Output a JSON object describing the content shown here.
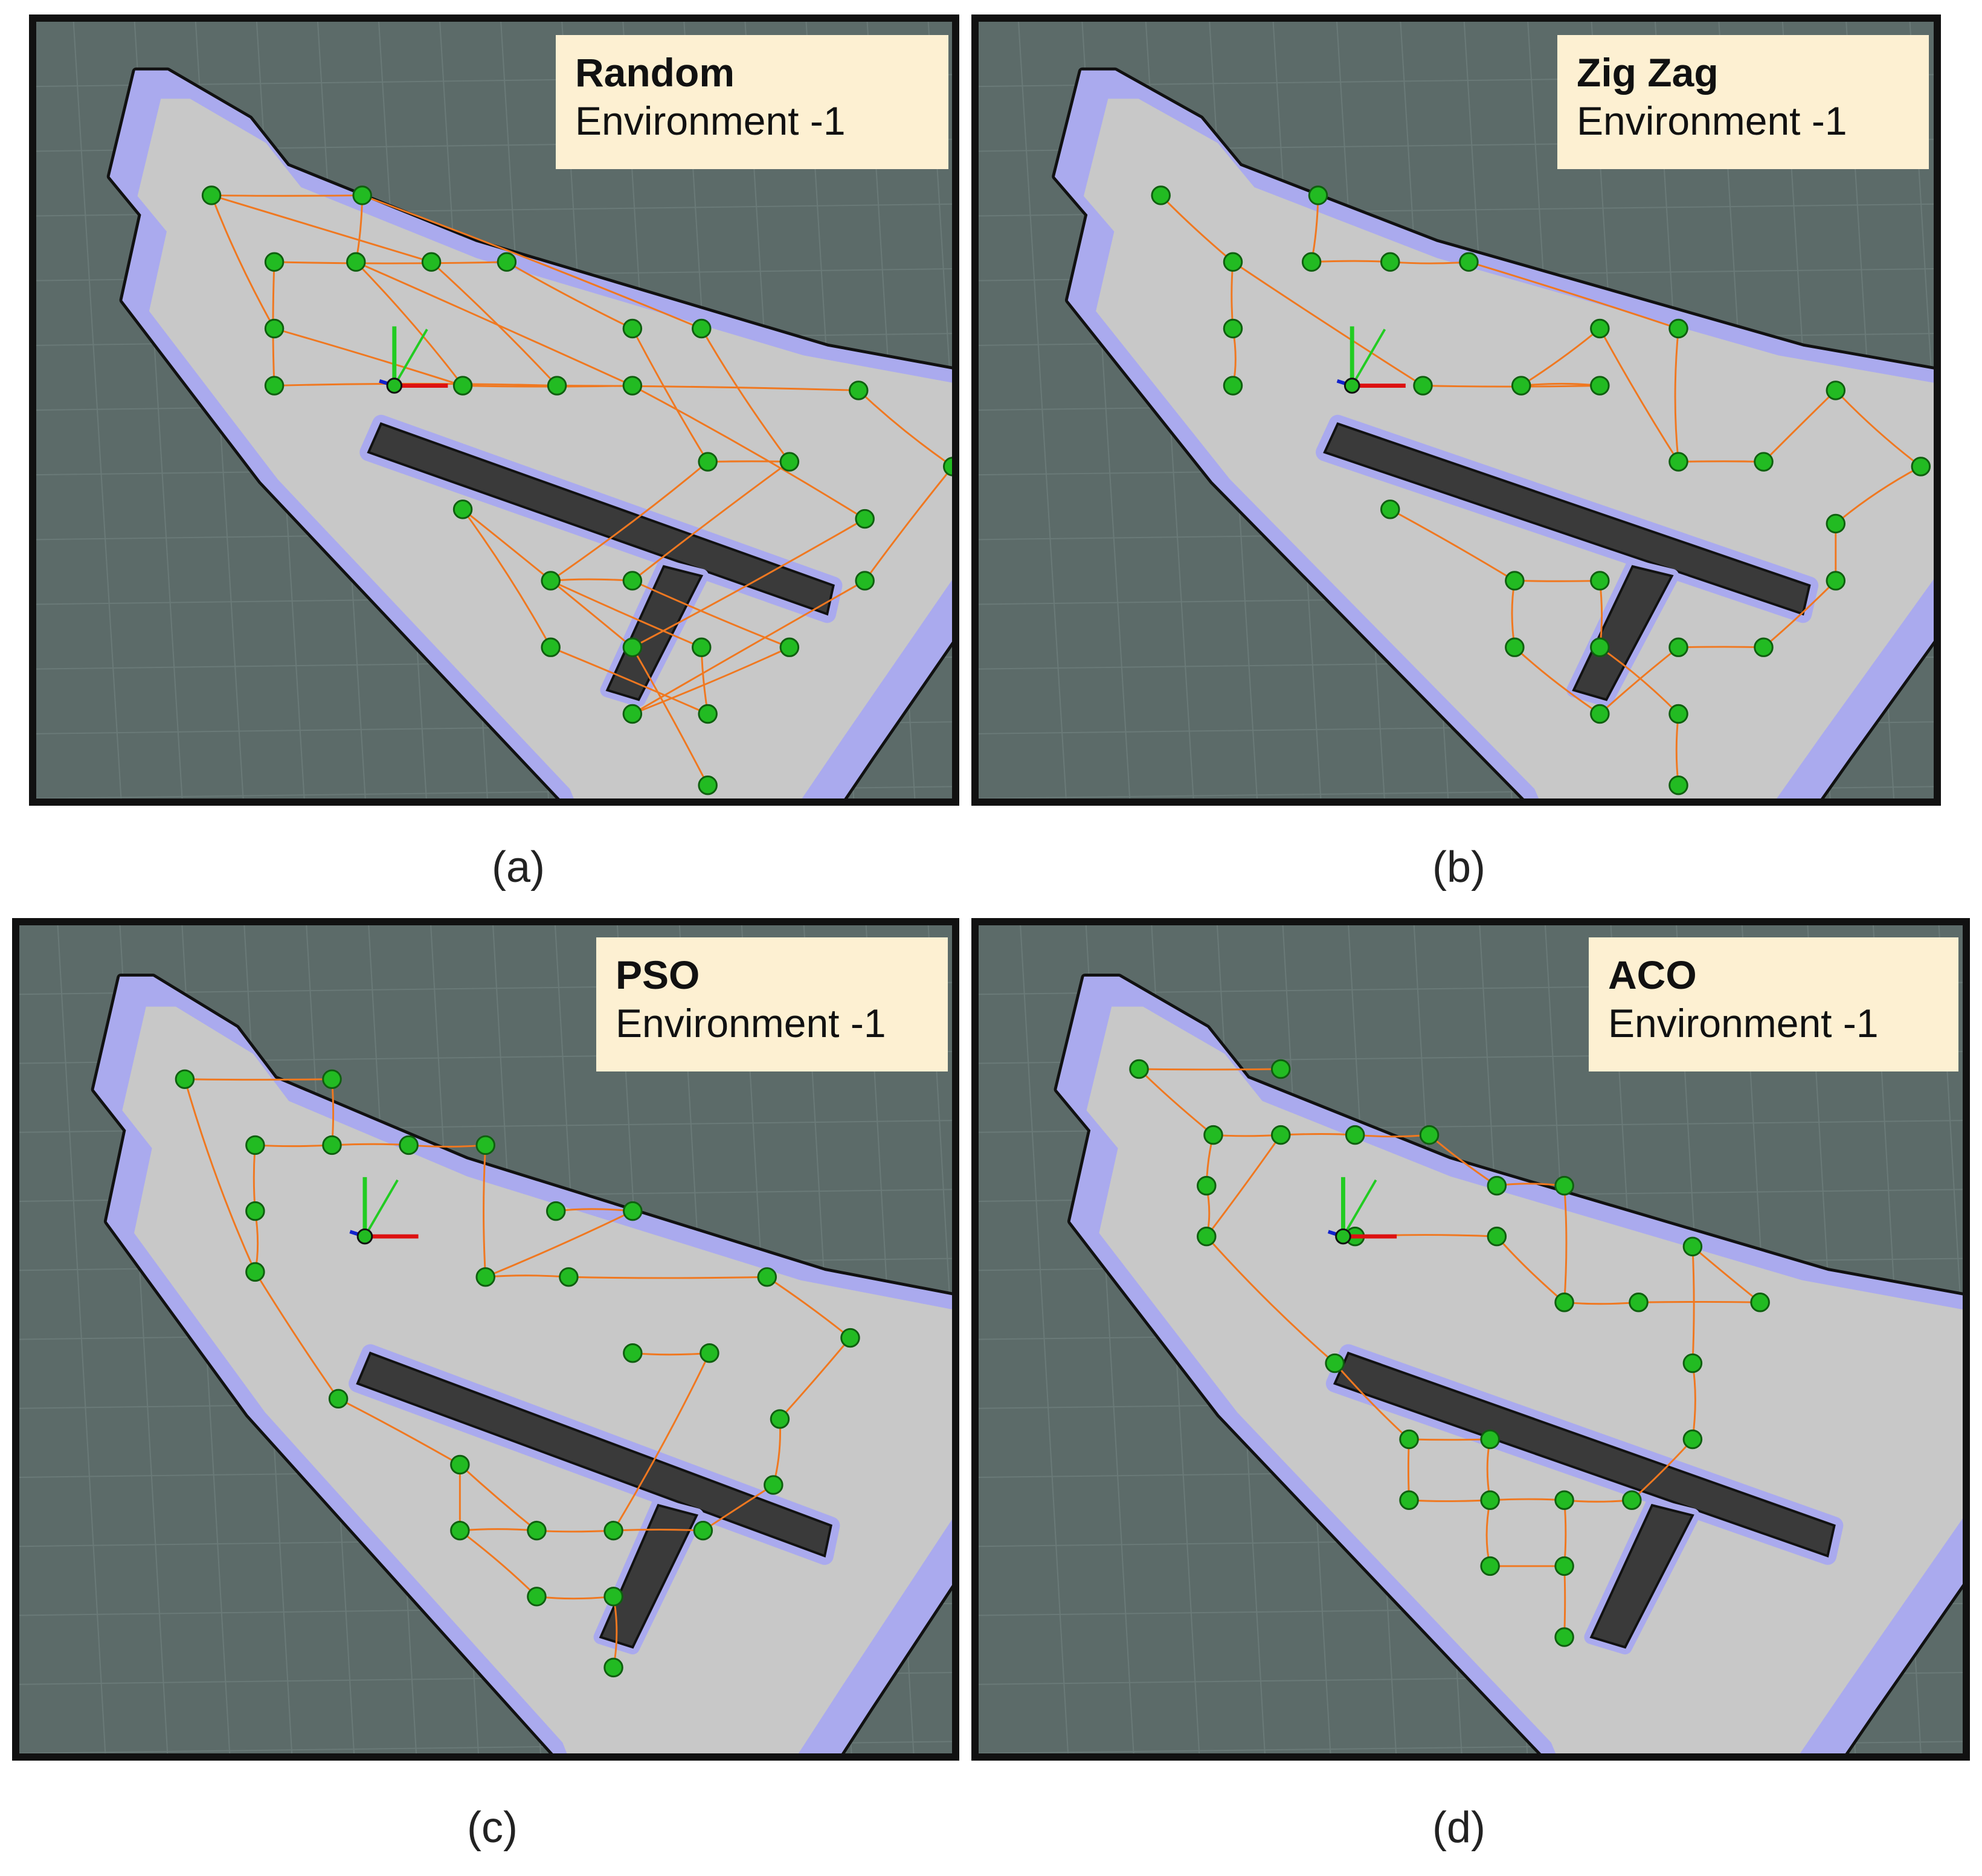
{
  "panels": [
    {
      "id": "a",
      "title": "Random",
      "subtitle": "Environment -1",
      "caption": "(a)"
    },
    {
      "id": "b",
      "title": "Zig Zag",
      "subtitle": "Environment -1",
      "caption": "(b)"
    },
    {
      "id": "c",
      "title": "PSO",
      "subtitle": "Environment -1",
      "caption": "(c)"
    },
    {
      "id": "d",
      "title": "ACO",
      "subtitle": "Environment -1",
      "caption": "(d)"
    }
  ],
  "colors": {
    "background": "#5c6b69",
    "grid": "#6e7e7c",
    "free_space": "#c8c8c8",
    "inflation": "#aaaaee",
    "obstacle": "#111111",
    "path": "#f07820",
    "waypoint": "#22bb22",
    "label_box": "#fdf0d2"
  },
  "icons": [
    "robot-pose-axes-icon"
  ]
}
